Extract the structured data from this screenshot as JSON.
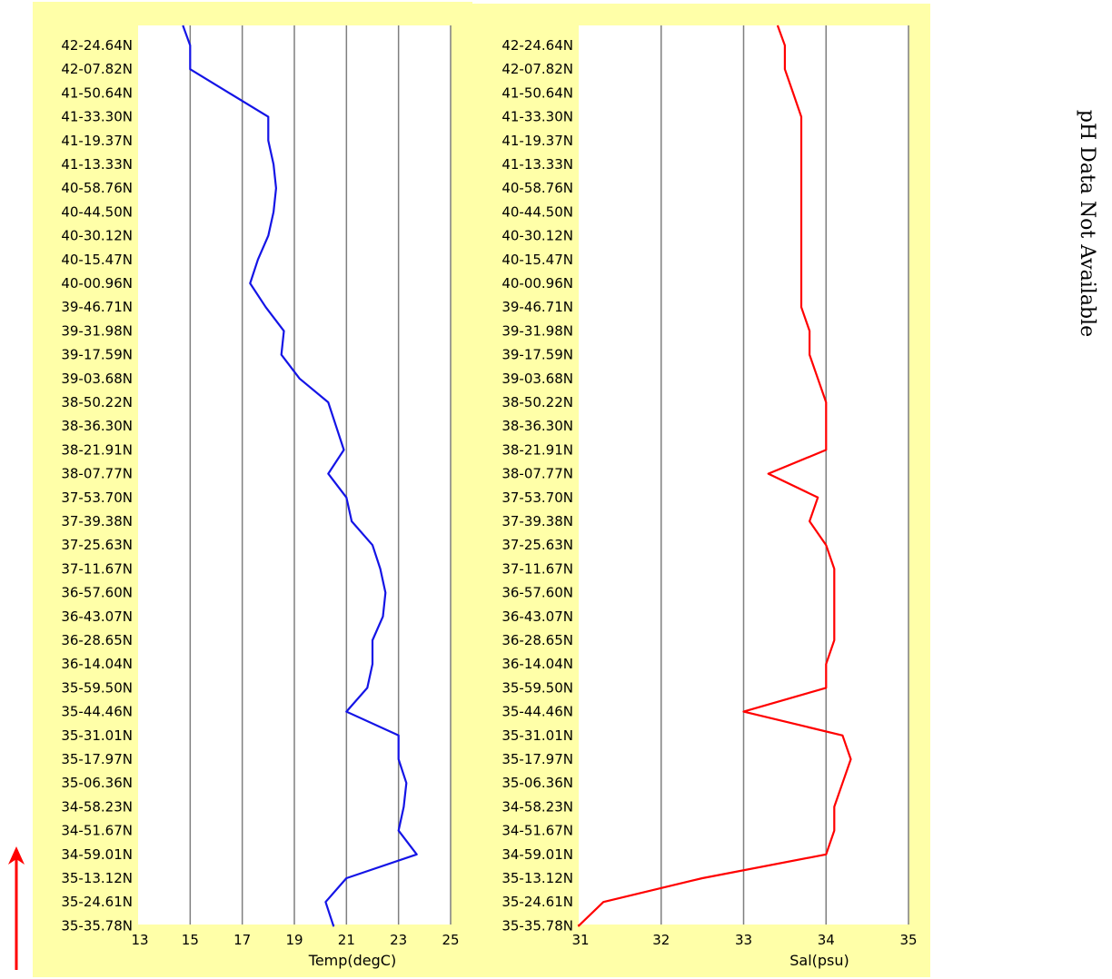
{
  "chart_data": [
    {
      "type": "line",
      "orientation": "vertical-profile",
      "xlabel": "Temp(degC)",
      "x_range": [
        13,
        25
      ],
      "x_ticks": [
        13,
        15,
        17,
        19,
        21,
        23,
        25
      ],
      "grid": true,
      "line_color": "#1414e6",
      "latitude_labels": [
        "42-24.64N",
        "42-07.82N",
        "41-50.64N",
        "41-33.30N",
        "41-19.37N",
        "41-13.33N",
        "40-58.76N",
        "40-44.50N",
        "40-30.12N",
        "40-15.47N",
        "40-00.96N",
        "39-46.71N",
        "39-31.98N",
        "39-17.59N",
        "39-03.68N",
        "38-50.22N",
        "38-36.30N",
        "38-21.91N",
        "38-07.77N",
        "37-53.70N",
        "37-39.38N",
        "37-25.63N",
        "37-11.67N",
        "36-57.60N",
        "36-43.07N",
        "36-28.65N",
        "36-14.04N",
        "35-59.50N",
        "35-44.46N",
        "35-31.01N",
        "35-17.97N",
        "35-06.36N",
        "34-58.23N",
        "34-51.67N",
        "34-59.01N",
        "35-13.12N",
        "35-24.61N",
        "35-35.78N"
      ],
      "series": [
        {
          "points": [
            {
              "lat": "42-24.64N",
              "value": 15.0
            },
            {
              "lat": "42-07.82N",
              "value": 15.0
            },
            {
              "lat": "41-50.64N",
              "value": 16.5
            },
            {
              "lat": "41-33.30N",
              "value": 18.0
            },
            {
              "lat": "41-19.37N",
              "value": 18.0
            },
            {
              "lat": "41-13.33N",
              "value": 18.2
            },
            {
              "lat": "40-58.76N",
              "value": 18.3
            },
            {
              "lat": "40-44.50N",
              "value": 18.2
            },
            {
              "lat": "40-30.12N",
              "value": 18.0
            },
            {
              "lat": "40-15.47N",
              "value": 17.6
            },
            {
              "lat": "40-00.96N",
              "value": 17.3
            },
            {
              "lat": "39-46.71N",
              "value": 17.9
            },
            {
              "lat": "39-31.98N",
              "value": 18.6
            },
            {
              "lat": "39-17.59N",
              "value": 18.5
            },
            {
              "lat": "39-03.68N",
              "value": 19.2
            },
            {
              "lat": "38-50.22N",
              "value": 20.3
            },
            {
              "lat": "38-36.30N",
              "value": 20.6
            },
            {
              "lat": "38-21.91N",
              "value": 20.9
            },
            {
              "lat": "38-07.77N",
              "value": 20.3
            },
            {
              "lat": "37-53.70N",
              "value": 21.0
            },
            {
              "lat": "37-39.38N",
              "value": 21.2
            },
            {
              "lat": "37-25.63N",
              "value": 22.0
            },
            {
              "lat": "37-11.67N",
              "value": 22.3
            },
            {
              "lat": "36-57.60N",
              "value": 22.5
            },
            {
              "lat": "36-43.07N",
              "value": 22.4
            },
            {
              "lat": "36-28.65N",
              "value": 22.0
            },
            {
              "lat": "36-14.04N",
              "value": 22.0
            },
            {
              "lat": "35-59.50N",
              "value": 21.8
            },
            {
              "lat": "35-44.46N",
              "value": 21.0
            },
            {
              "lat": "35-31.01N",
              "value": 23.0
            },
            {
              "lat": "35-17.97N",
              "value": 23.0
            },
            {
              "lat": "35-06.36N",
              "value": 23.3
            },
            {
              "lat": "34-58.23N",
              "value": 23.2
            },
            {
              "lat": "34-51.67N",
              "value": 23.0
            },
            {
              "lat": "34-59.01N",
              "value": 23.7
            },
            {
              "lat": "35-13.12N",
              "value": 21.0
            },
            {
              "lat": "35-24.61N",
              "value": 20.2
            },
            {
              "lat": "35-35.78N",
              "value": 20.5
            }
          ]
        }
      ]
    },
    {
      "type": "line",
      "orientation": "vertical-profile",
      "xlabel": "Sal(psu)",
      "x_range": [
        31,
        35
      ],
      "x_ticks": [
        31,
        32,
        33,
        34,
        35
      ],
      "grid": true,
      "line_color": "#ff0000",
      "latitude_labels": [
        "42-24.64N",
        "42-07.82N",
        "41-50.64N",
        "41-33.30N",
        "41-19.37N",
        "41-13.33N",
        "40-58.76N",
        "40-44.50N",
        "40-30.12N",
        "40-15.47N",
        "40-00.96N",
        "39-46.71N",
        "39-31.98N",
        "39-17.59N",
        "39-03.68N",
        "38-50.22N",
        "38-36.30N",
        "38-21.91N",
        "38-07.77N",
        "37-53.70N",
        "37-39.38N",
        "37-25.63N",
        "37-11.67N",
        "36-57.60N",
        "36-43.07N",
        "36-28.65N",
        "36-14.04N",
        "35-59.50N",
        "35-44.46N",
        "35-31.01N",
        "35-17.97N",
        "35-06.36N",
        "34-58.23N",
        "34-51.67N",
        "34-59.01N",
        "35-13.12N",
        "35-24.61N",
        "35-35.78N"
      ],
      "series": [
        {
          "points": [
            {
              "lat": "42-24.64N",
              "value": 33.5
            },
            {
              "lat": "42-07.82N",
              "value": 33.5
            },
            {
              "lat": "41-50.64N",
              "value": 33.6
            },
            {
              "lat": "41-33.30N",
              "value": 33.7
            },
            {
              "lat": "41-19.37N",
              "value": 33.7
            },
            {
              "lat": "41-13.33N",
              "value": 33.7
            },
            {
              "lat": "40-58.76N",
              "value": 33.7
            },
            {
              "lat": "40-44.50N",
              "value": 33.7
            },
            {
              "lat": "40-30.12N",
              "value": 33.7
            },
            {
              "lat": "40-15.47N",
              "value": 33.7
            },
            {
              "lat": "40-00.96N",
              "value": 33.7
            },
            {
              "lat": "39-46.71N",
              "value": 33.7
            },
            {
              "lat": "39-31.98N",
              "value": 33.8
            },
            {
              "lat": "39-17.59N",
              "value": 33.8
            },
            {
              "lat": "39-03.68N",
              "value": 33.9
            },
            {
              "lat": "38-50.22N",
              "value": 34.0
            },
            {
              "lat": "38-36.30N",
              "value": 34.0
            },
            {
              "lat": "38-21.91N",
              "value": 34.0
            },
            {
              "lat": "38-07.77N",
              "value": 33.3
            },
            {
              "lat": "37-53.70N",
              "value": 33.9
            },
            {
              "lat": "37-39.38N",
              "value": 33.8
            },
            {
              "lat": "37-25.63N",
              "value": 34.0
            },
            {
              "lat": "37-11.67N",
              "value": 34.1
            },
            {
              "lat": "36-57.60N",
              "value": 34.1
            },
            {
              "lat": "36-43.07N",
              "value": 34.1
            },
            {
              "lat": "36-28.65N",
              "value": 34.1
            },
            {
              "lat": "36-14.04N",
              "value": 34.0
            },
            {
              "lat": "35-59.50N",
              "value": 34.0
            },
            {
              "lat": "35-44.46N",
              "value": 33.0
            },
            {
              "lat": "35-31.01N",
              "value": 34.2
            },
            {
              "lat": "35-17.97N",
              "value": 34.3
            },
            {
              "lat": "35-06.36N",
              "value": 34.2
            },
            {
              "lat": "34-58.23N",
              "value": 34.1
            },
            {
              "lat": "34-51.67N",
              "value": 34.1
            },
            {
              "lat": "34-59.01N",
              "value": 34.0
            },
            {
              "lat": "35-13.12N",
              "value": 32.5
            },
            {
              "lat": "35-24.61N",
              "value": 31.3
            },
            {
              "lat": "35-35.78N",
              "value": 31.0
            }
          ]
        }
      ]
    }
  ],
  "ph_panel": {
    "message": "pH Data Not Available"
  },
  "direction_arrow": {
    "color": "#ff0000",
    "direction": "up"
  }
}
